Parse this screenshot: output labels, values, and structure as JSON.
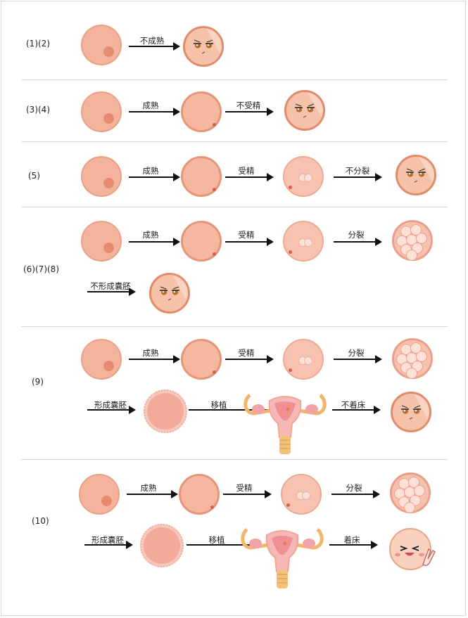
{
  "rows": [
    {
      "label": "(1)(2)",
      "steps": [
        "不成熟"
      ]
    },
    {
      "label": "(3)(4)",
      "steps": [
        "成熟",
        "不受精"
      ]
    },
    {
      "label": "(5)",
      "steps": [
        "成熟",
        "受精",
        "不分裂"
      ]
    },
    {
      "label": "(6)(7)(8)",
      "steps": [
        "成熟",
        "受精",
        "分裂",
        "不形成囊胚"
      ]
    },
    {
      "label": "(9)",
      "steps": [
        "成熟",
        "受精",
        "分裂",
        "形成囊胚",
        "移植",
        "不着床"
      ]
    },
    {
      "label": "(10)",
      "steps": [
        "成熟",
        "受精",
        "分裂",
        "形成囊胚",
        "移植",
        "着床"
      ]
    }
  ],
  "colors": {
    "egg_fill": "#f4b39c",
    "egg_border": "#e9a084",
    "nucleus": "#e58b70",
    "arrow": "#111111",
    "divider": "#d7d7d7"
  },
  "icons": [
    "egg-cell",
    "mature-egg",
    "fertilized-egg",
    "morula",
    "blastocyst",
    "uterus",
    "sad-face",
    "happy-face-peace-sign"
  ]
}
